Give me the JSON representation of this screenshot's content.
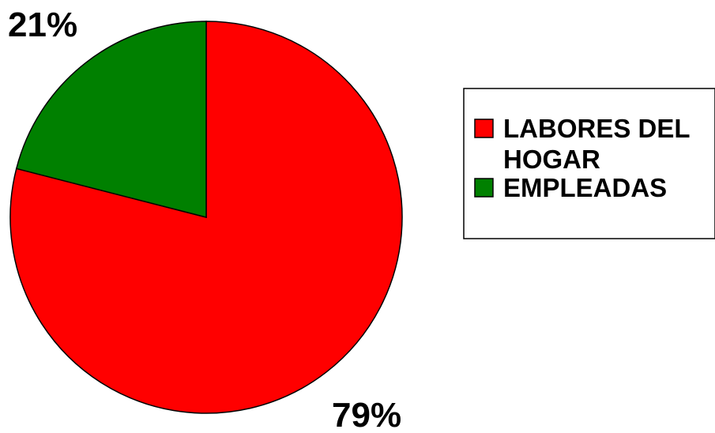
{
  "chart_data": {
    "type": "pie",
    "title": "",
    "series": [
      {
        "values": [
          79,
          21
        ],
        "labels": [
          "79%",
          "21%"
        ]
      }
    ],
    "categories": [
      "LABORES DEL HOGAR",
      "EMPLEADAS"
    ],
    "values": [
      79,
      21
    ],
    "unit": "%",
    "colors": [
      "#ff0000",
      "#008000"
    ],
    "legend": {
      "placement": "right",
      "entries": [
        {
          "line1": "LABORES DEL",
          "line2": "HOGAR",
          "color": "#ff0000"
        },
        {
          "line1": "EMPLEADAS",
          "line2": "",
          "color": "#008000"
        }
      ]
    },
    "data_labels": [
      "79%",
      "21%"
    ]
  }
}
